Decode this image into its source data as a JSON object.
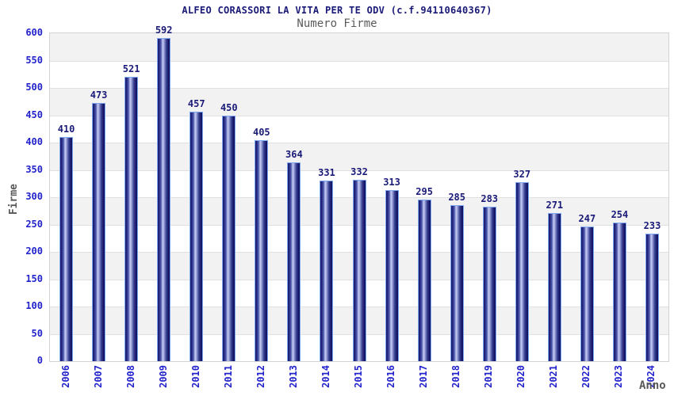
{
  "header": {
    "title": "ALFEO CORASSORI LA VITA PER TE ODV (c.f.94110640367)",
    "subtitle": "Numero Firme"
  },
  "chart_data": {
    "type": "bar",
    "title": "ALFEO CORASSORI LA VITA PER TE ODV (c.f.94110640367)",
    "subtitle": "Numero Firme",
    "xlabel": "Anno",
    "ylabel": "Firme",
    "categories": [
      "2006",
      "2007",
      "2008",
      "2009",
      "2010",
      "2011",
      "2012",
      "2013",
      "2014",
      "2015",
      "2016",
      "2017",
      "2018",
      "2019",
      "2020",
      "2021",
      "2022",
      "2023",
      "2024"
    ],
    "values": [
      410,
      473,
      521,
      592,
      457,
      450,
      405,
      364,
      331,
      332,
      313,
      295,
      285,
      283,
      327,
      271,
      247,
      254,
      233
    ],
    "ylim": [
      0,
      600
    ],
    "ytick_step": 50,
    "grid": true,
    "legend": "none",
    "colors": {
      "title_navy": "#1a1a78",
      "tick_blue": "#2323cc",
      "axis_title_gray": "#595959",
      "band_gray": "#f2f2f2",
      "band_white": "#ffffff",
      "gridline": "#e0e0e0",
      "plot_border": "#d3d3d3",
      "bar_edge": "#7ea7ef",
      "bar_dark": "#181868",
      "bar_highlight": "#c9cef2"
    }
  }
}
